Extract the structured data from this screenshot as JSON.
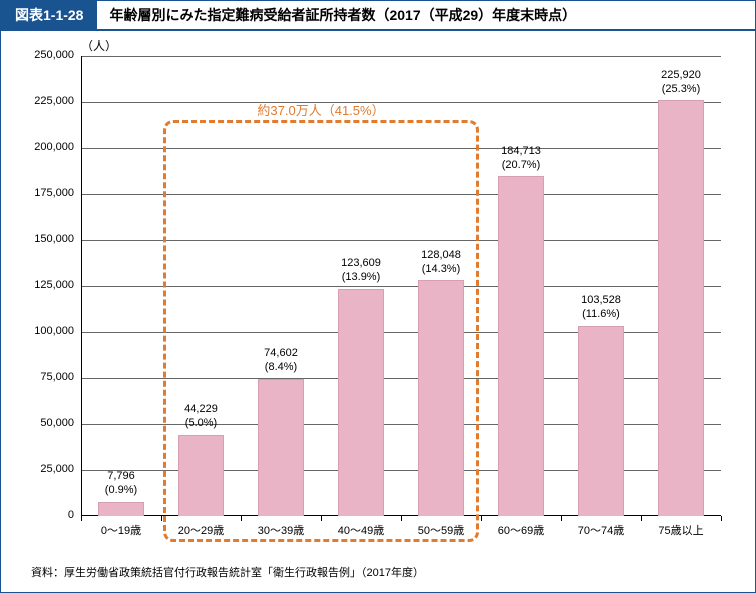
{
  "header": {
    "tag": "図表1-1-28",
    "title": "年齢層別にみた指定難病受給者証所持者数（2017（平成29）年度末時点）"
  },
  "chart": {
    "type": "bar",
    "y_axis_unit": "（人）",
    "ylim": [
      0,
      250000
    ],
    "ytick_step": 25000,
    "yticks": [
      "0",
      "25,000",
      "50,000",
      "75,000",
      "100,000",
      "125,000",
      "150,000",
      "175,000",
      "200,000",
      "225,000",
      "250,000"
    ],
    "categories": [
      "0～19歳",
      "20～29歳",
      "30～39歳",
      "40～49歳",
      "50～59歳",
      "60～69歳",
      "70～74歳",
      "75歳以上"
    ],
    "values": [
      7796,
      44229,
      74602,
      123609,
      128048,
      184713,
      103528,
      225920
    ],
    "bar_labels_value": [
      "7,796",
      "44,229",
      "74,602",
      "123,609",
      "128,048",
      "184,713",
      "103,528",
      "225,920"
    ],
    "bar_labels_pct": [
      "(0.9%)",
      "(5.0%)",
      "(8.4%)",
      "(13.9%)",
      "(14.3%)",
      "(20.7%)",
      "(11.6%)",
      "(25.3%)"
    ],
    "bar_color": "#e9b5c6",
    "bar_border_color": "#d89fb3",
    "grid_color": "#666666",
    "background_color": "#ffffff",
    "bar_width_ratio": 0.58
  },
  "callout": {
    "label": "約37.0万人（41.5%）",
    "color": "#e07b2f",
    "range_start_index": 1,
    "range_end_index": 4
  },
  "source": "資料：厚生労働省政策統括官付行政報告統計室「衛生行政報告例」（2017年度）"
}
